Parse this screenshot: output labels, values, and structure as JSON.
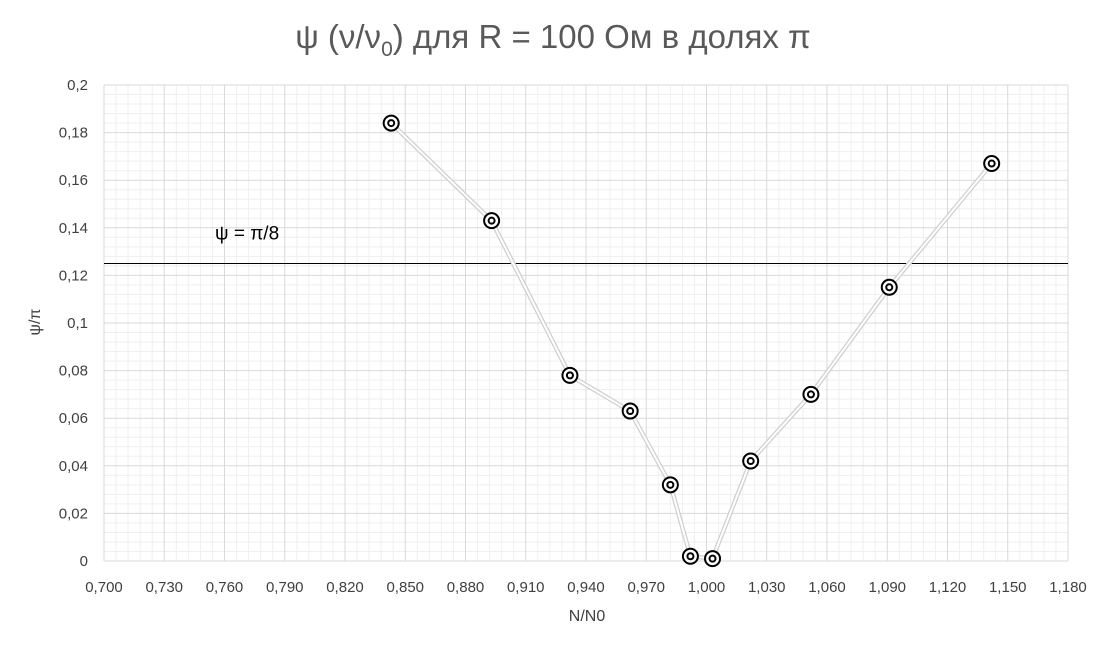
{
  "chart_data": {
    "type": "scatter",
    "title_main": "ψ (ν/ν",
    "title_sub": "0",
    "title_tail": ") для R = 100 Ом в долях π",
    "xlabel": "N/N0",
    "ylabel": "ψ/π",
    "xlim": [
      0.7,
      1.18
    ],
    "ylim": [
      0,
      0.2
    ],
    "x_ticks": [
      "0,700",
      "0,730",
      "0,760",
      "0,790",
      "0,820",
      "0,850",
      "0,880",
      "0,910",
      "0,940",
      "0,970",
      "1,000",
      "1,030",
      "1,060",
      "1,090",
      "1,120",
      "1,150",
      "1,180"
    ],
    "y_ticks": [
      "0",
      "0,02",
      "0,04",
      "0,06",
      "0,08",
      "0,1",
      "0,12",
      "0,14",
      "0,16",
      "0,18",
      "0,2"
    ],
    "grid": "major and minor",
    "series": [
      {
        "x": [
          0.843,
          0.893,
          0.932,
          0.962,
          0.982,
          0.992,
          1.003,
          1.022,
          1.052,
          1.091,
          1.142
        ],
        "y": [
          0.184,
          0.143,
          0.078,
          0.063,
          0.032,
          0.002,
          0.001,
          0.042,
          0.07,
          0.115,
          0.167
        ],
        "line_color": "#d9d9d9",
        "marker_color": "#000000"
      }
    ],
    "reference_line": {
      "y": 0.125,
      "label": "ψ = π/8",
      "color": "#000000"
    }
  }
}
